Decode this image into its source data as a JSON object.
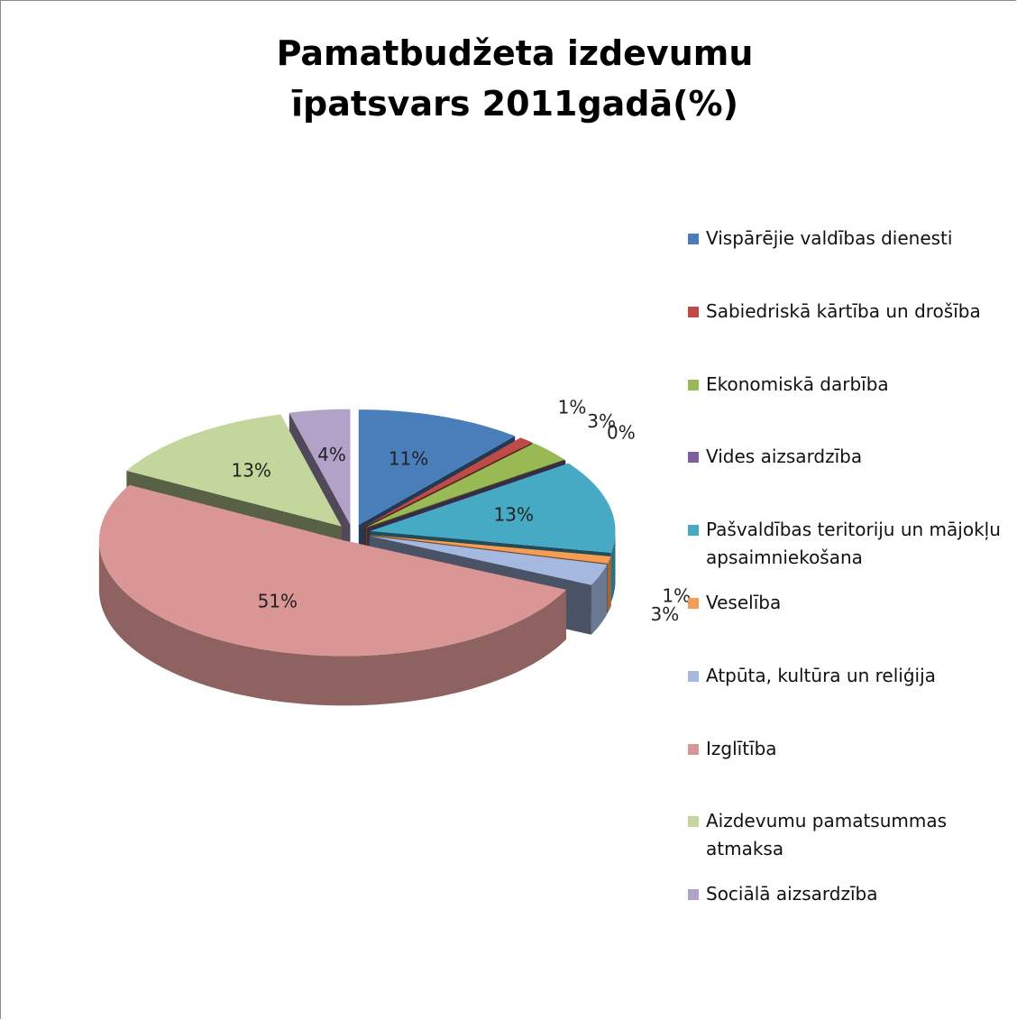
{
  "chart_data": {
    "type": "pie",
    "title": "Pamatbudžeta izdevumu īpatsvars 2011gadā(%)",
    "categories": [
      "Vispārējie valdības dienesti",
      "Sabiedriskā kārtība un drošība",
      "Ekonomiskā darbība",
      "Vides aizsardzība",
      "Pašvaldības teritoriju un mājokļu apsaimniekošana",
      "Veselība",
      "Atpūta, kultūra un reliģija",
      "Izglītība",
      "Aizdevumu pamatsummas atmaksa",
      "Sociālā aizsardzība"
    ],
    "values": [
      11,
      1,
      3,
      0,
      13,
      1,
      3,
      51,
      13,
      4
    ],
    "value_labels": [
      "11%",
      "1%",
      "3%",
      "0%",
      "13%",
      "1%",
      "3%",
      "51%",
      "13%",
      "4%"
    ],
    "colors": [
      "#4a7ebb",
      "#be4b48",
      "#98b954",
      "#7d5fa0",
      "#46aac5",
      "#f59d56",
      "#a5b9e0",
      "#d99694",
      "#c3d69b",
      "#b3a2c7"
    ],
    "legend": "right"
  }
}
